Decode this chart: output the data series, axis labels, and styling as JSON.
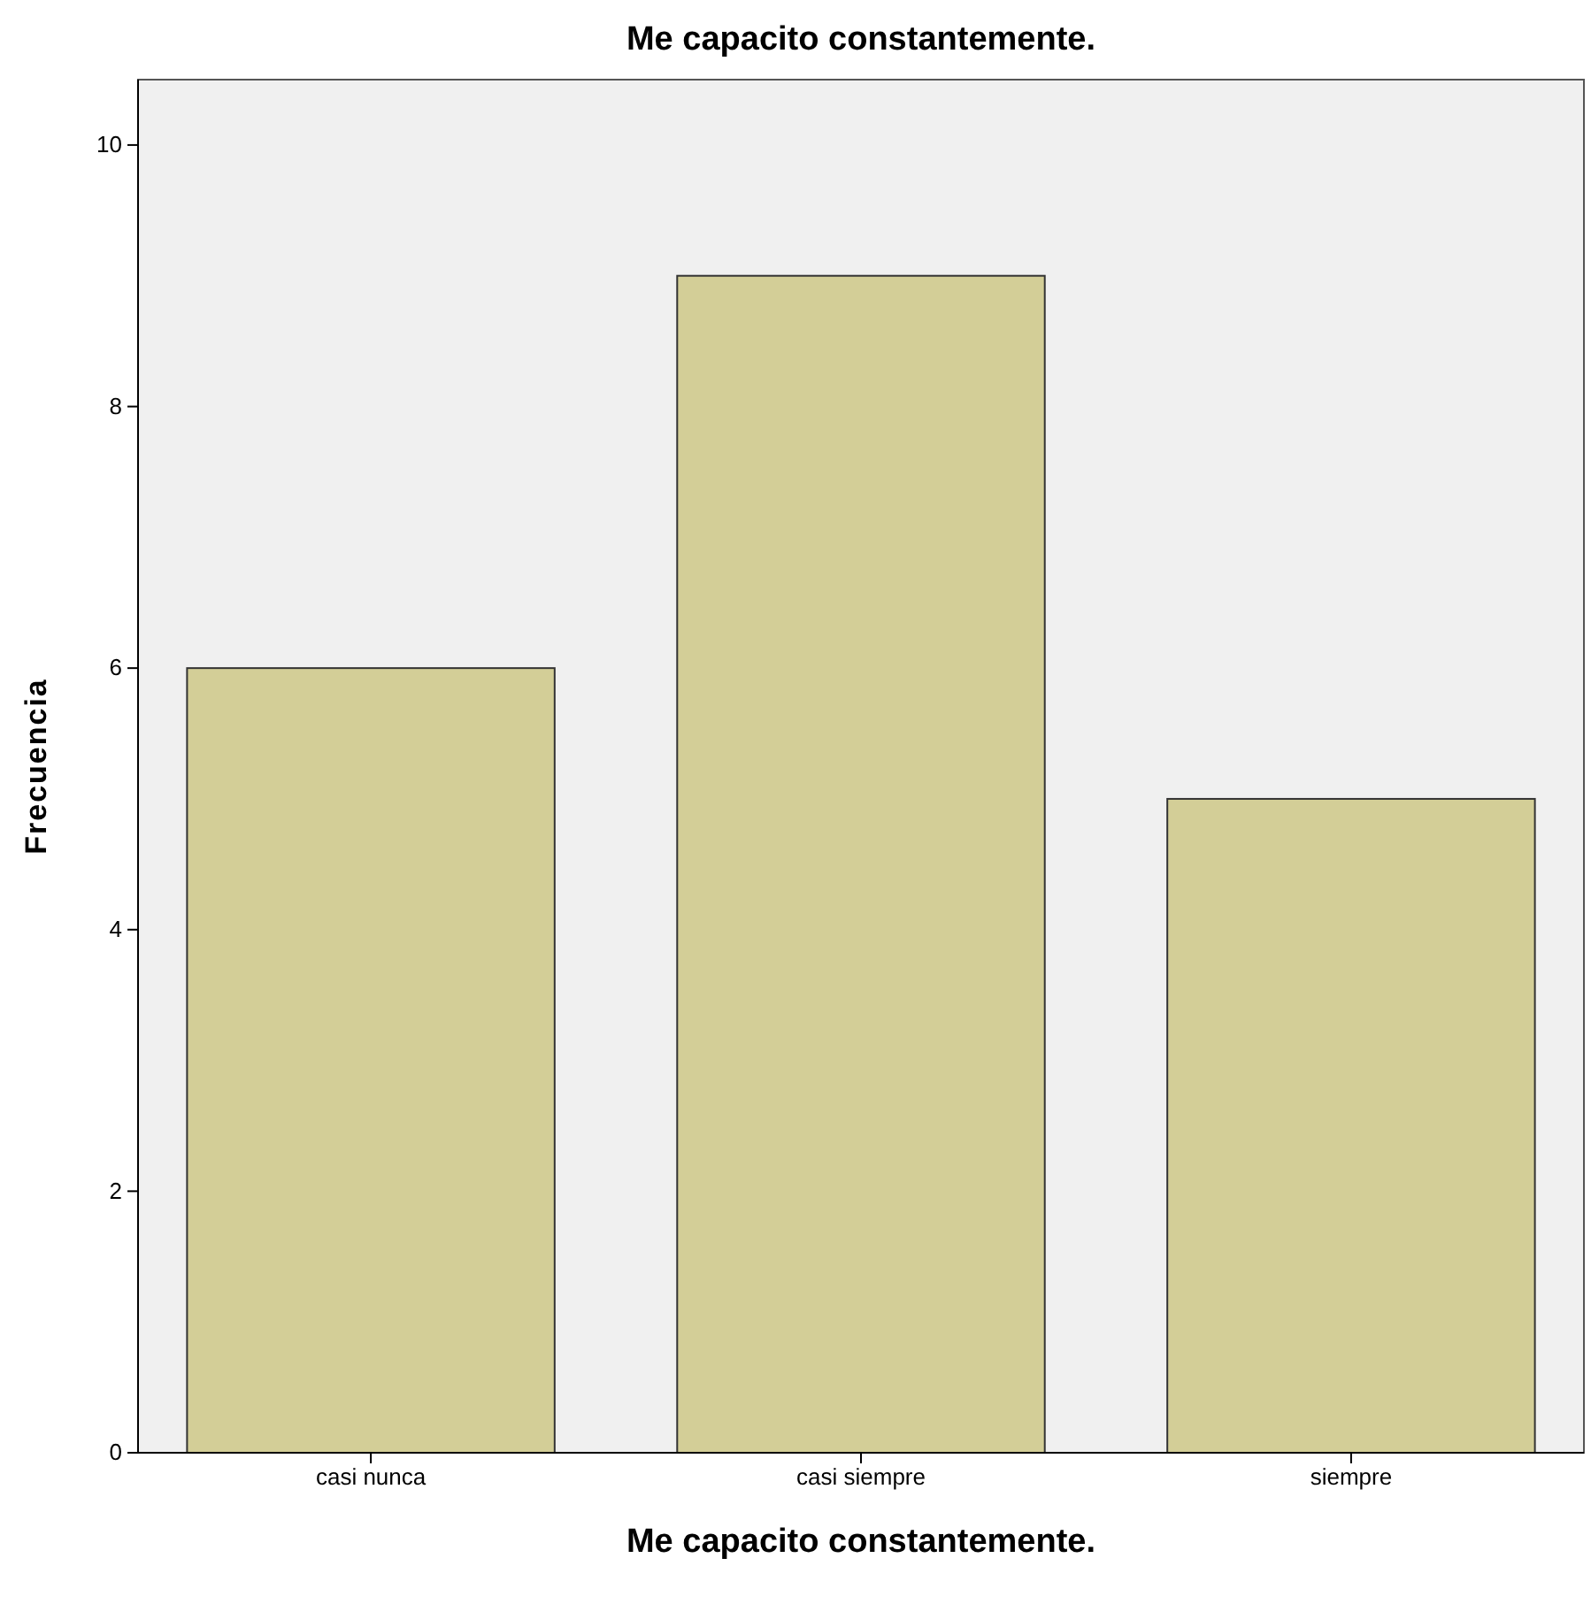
{
  "chart_data": {
    "type": "bar",
    "title": "Me capacito constantemente.",
    "xlabel": "Me capacito constantemente.",
    "ylabel": "Frecuencia",
    "categories": [
      "casi nunca",
      "casi siempre",
      "siempre"
    ],
    "values": [
      6,
      9,
      5
    ],
    "color": "#d3ce97",
    "ylim": [
      0,
      10.5
    ],
    "yticks": [
      0,
      2,
      4,
      6,
      8,
      10
    ],
    "grid": false,
    "legend": false
  }
}
